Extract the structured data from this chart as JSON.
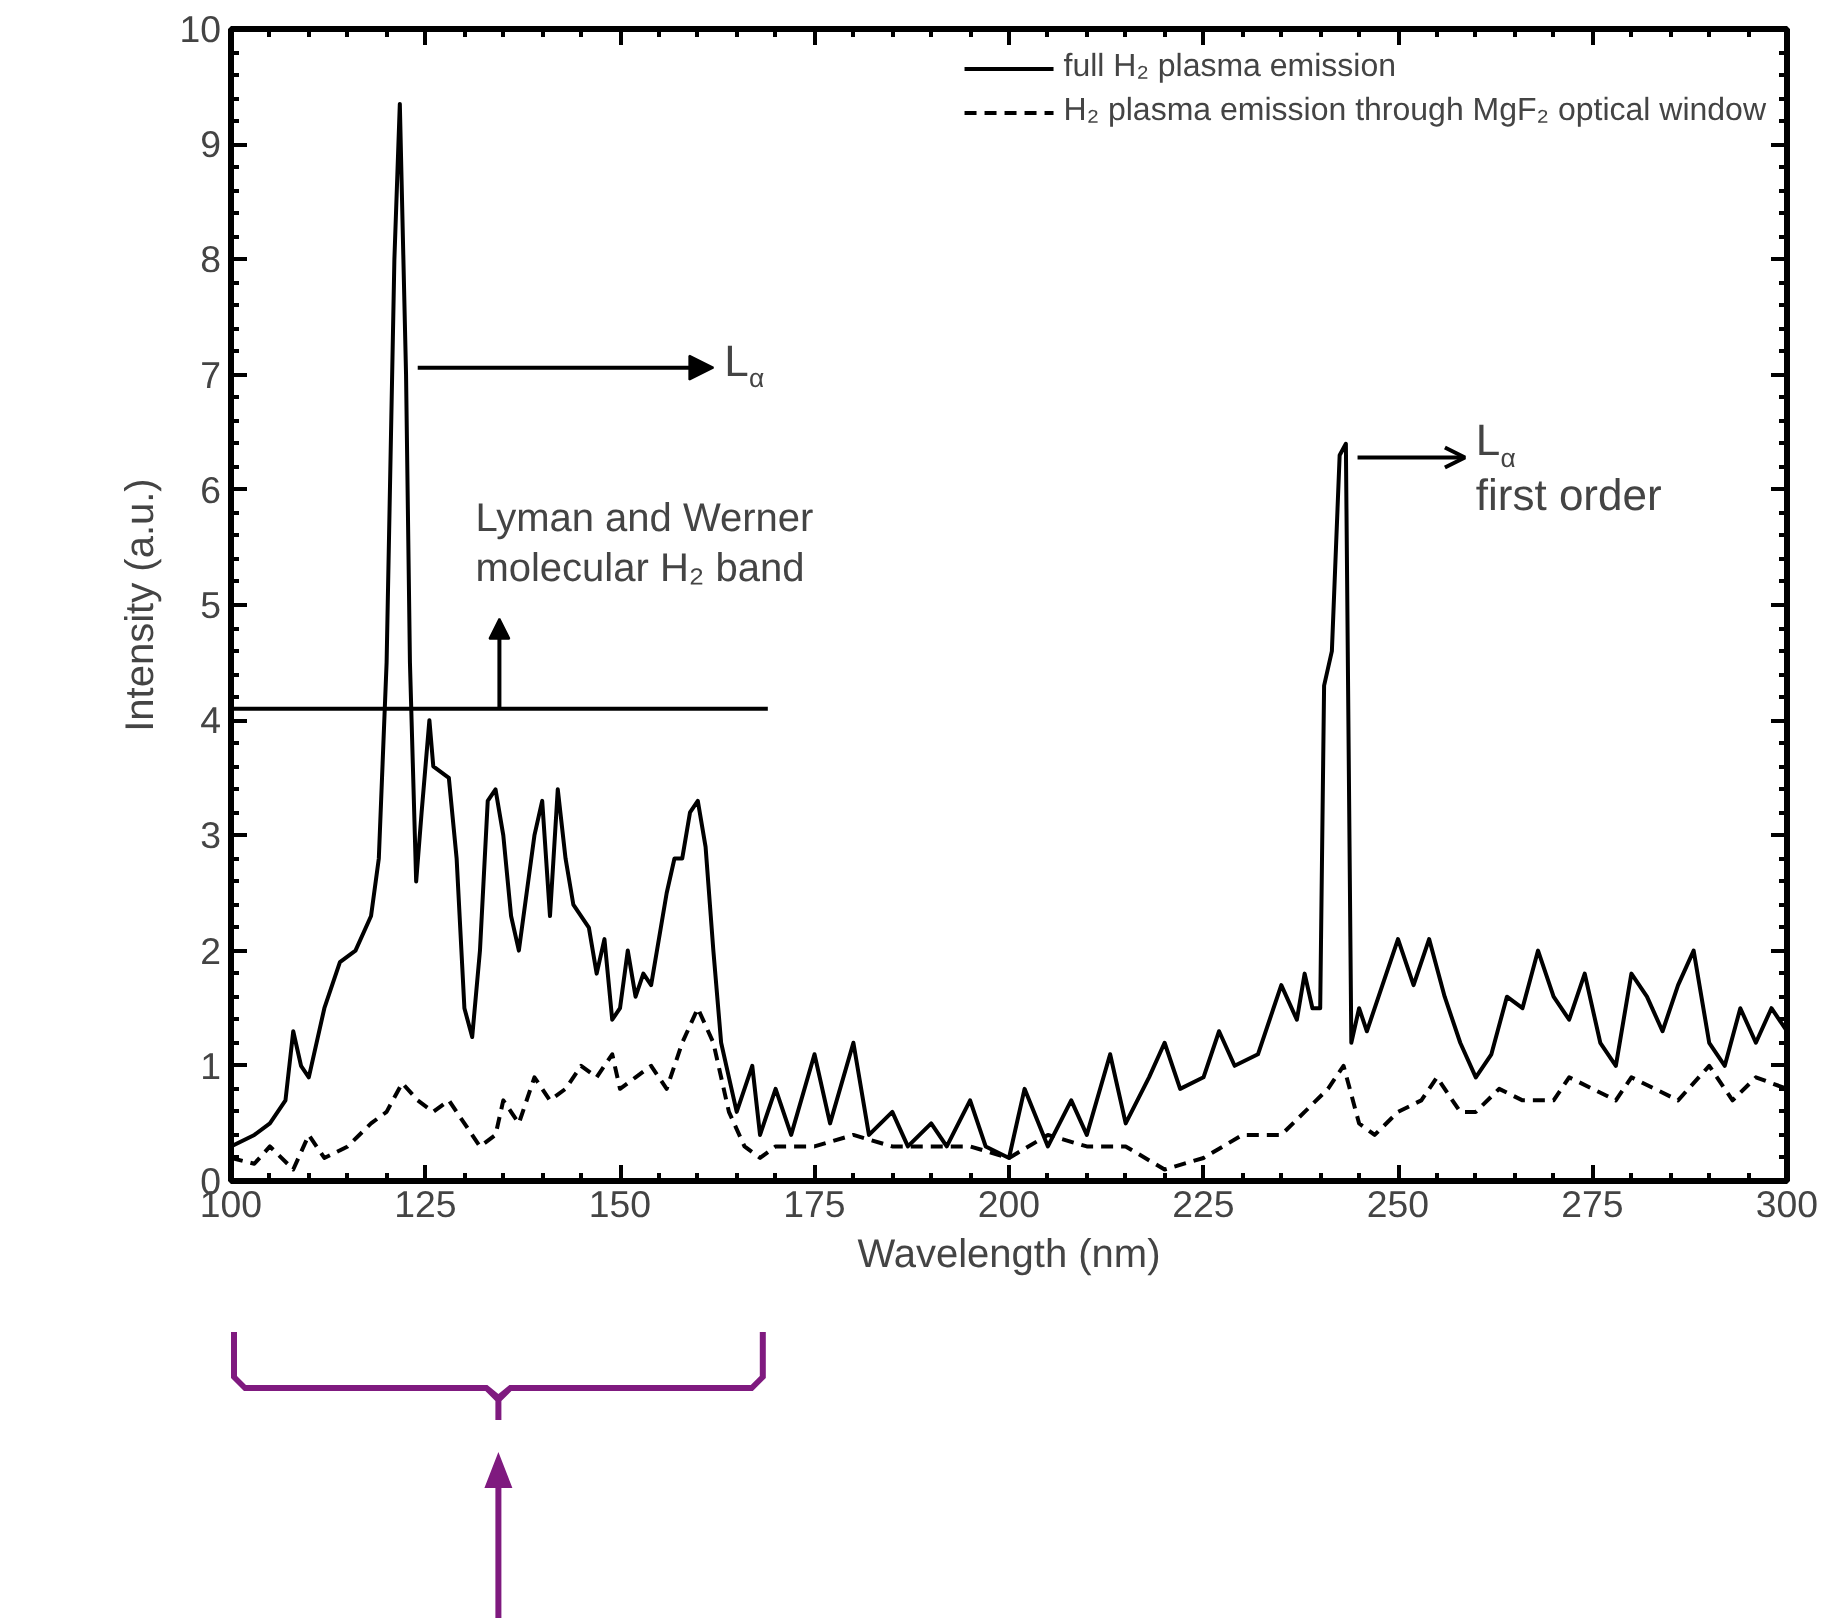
{
  "chart_data": {
    "type": "line",
    "xlabel": "Wavelength (nm)",
    "ylabel": "Intensity (a.u.)",
    "xlim": [
      100,
      300
    ],
    "xticks": [
      100,
      125,
      150,
      175,
      200,
      225,
      250,
      275,
      300
    ],
    "ylim": [
      0,
      10
    ],
    "yticks": [
      0,
      1,
      2,
      3,
      4,
      5,
      6,
      7,
      8,
      9,
      10
    ],
    "grid": false,
    "legend": "top right",
    "marker": "none",
    "series": [
      {
        "name": "full H₂ plasma emission",
        "color": "#000000",
        "line_style": "solid",
        "x": [
          100,
          103,
          105,
          107,
          108,
          109,
          110,
          112,
          114,
          116,
          118,
          119,
          120,
          121,
          121.7,
          122.5,
          123,
          123.8,
          124.5,
          125.5,
          126,
          128,
          129,
          130,
          131,
          132,
          133,
          134,
          135,
          136,
          137,
          138,
          139,
          140,
          141,
          142,
          143,
          144,
          146,
          147,
          148,
          149,
          150,
          151,
          152,
          153,
          154,
          156,
          157,
          158,
          159,
          160,
          161,
          162,
          163,
          164,
          165,
          167,
          168,
          170,
          172,
          175,
          177,
          180,
          182,
          185,
          187,
          190,
          192,
          195,
          197,
          200,
          202,
          205,
          208,
          210,
          213,
          215,
          218,
          220,
          222,
          225,
          227,
          229,
          232,
          235,
          237,
          238,
          239,
          240,
          240.5,
          241.5,
          242.5,
          243.3,
          244,
          245,
          246,
          248,
          250,
          252,
          254,
          256,
          258,
          260,
          262,
          264,
          266,
          268,
          270,
          272,
          274,
          276,
          278,
          280,
          282,
          284,
          286,
          288,
          290,
          292,
          294,
          296,
          298,
          300
        ],
        "values": [
          0.3,
          0.4,
          0.5,
          0.7,
          1.3,
          1.0,
          0.9,
          1.5,
          1.9,
          2.0,
          2.3,
          2.8,
          4.5,
          8.0,
          9.35,
          7.0,
          4.5,
          2.6,
          3.2,
          4.0,
          3.6,
          3.5,
          2.8,
          1.5,
          1.25,
          2.0,
          3.3,
          3.4,
          3.0,
          2.3,
          2.0,
          2.5,
          3.0,
          3.3,
          2.3,
          3.4,
          2.8,
          2.4,
          2.2,
          1.8,
          2.1,
          1.4,
          1.5,
          2.0,
          1.6,
          1.8,
          1.7,
          2.5,
          2.8,
          2.8,
          3.2,
          3.3,
          2.9,
          2.0,
          1.2,
          0.9,
          0.6,
          1.0,
          0.4,
          0.8,
          0.4,
          1.1,
          0.5,
          1.2,
          0.4,
          0.6,
          0.3,
          0.5,
          0.3,
          0.7,
          0.3,
          0.2,
          0.8,
          0.3,
          0.7,
          0.4,
          1.1,
          0.5,
          0.9,
          1.2,
          0.8,
          0.9,
          1.3,
          1.0,
          1.1,
          1.7,
          1.4,
          1.8,
          1.5,
          1.5,
          4.3,
          4.6,
          6.3,
          6.4,
          1.2,
          1.5,
          1.3,
          1.7,
          2.1,
          1.7,
          2.1,
          1.6,
          1.2,
          0.9,
          1.1,
          1.6,
          1.5,
          2.0,
          1.6,
          1.4,
          1.8,
          1.2,
          1.0,
          1.8,
          1.6,
          1.3,
          1.7,
          2.0,
          1.2,
          1.0,
          1.5,
          1.2,
          1.5,
          1.3
        ]
      },
      {
        "color": "#000000",
        "line_style": "solid",
        "x": [
          100,
          169
        ],
        "values": [
          4.1,
          4.1
        ]
      },
      {
        "name": "H₂ plasma emission through MgF₂ optical window",
        "color": "#000000",
        "line_style": "dashed",
        "x": [
          100,
          103,
          105,
          108,
          110,
          112,
          115,
          118,
          120,
          122,
          124,
          126,
          128,
          130,
          132,
          134,
          135,
          137,
          139,
          141,
          143,
          145,
          147,
          149,
          150,
          152,
          154,
          156,
          158,
          160,
          162,
          164,
          166,
          168,
          170,
          175,
          180,
          185,
          190,
          195,
          200,
          205,
          210,
          215,
          220,
          225,
          230,
          235,
          238,
          241,
          243,
          245,
          247,
          250,
          253,
          255,
          258,
          260,
          263,
          266,
          270,
          272,
          275,
          278,
          280,
          283,
          286,
          290,
          293,
          296,
          300
        ],
        "values": [
          0.2,
          0.15,
          0.3,
          0.1,
          0.4,
          0.2,
          0.3,
          0.5,
          0.6,
          0.85,
          0.7,
          0.6,
          0.7,
          0.5,
          0.3,
          0.4,
          0.7,
          0.5,
          0.9,
          0.7,
          0.8,
          1.0,
          0.9,
          1.1,
          0.8,
          0.9,
          1.0,
          0.8,
          1.2,
          1.5,
          1.2,
          0.6,
          0.3,
          0.2,
          0.3,
          0.3,
          0.4,
          0.3,
          0.3,
          0.3,
          0.2,
          0.4,
          0.3,
          0.3,
          0.1,
          0.2,
          0.4,
          0.4,
          0.6,
          0.8,
          1.0,
          0.5,
          0.4,
          0.6,
          0.7,
          0.9,
          0.6,
          0.6,
          0.8,
          0.7,
          0.7,
          0.9,
          0.8,
          0.7,
          0.9,
          0.8,
          0.7,
          1.0,
          0.7,
          0.9,
          0.8
        ]
      }
    ],
    "annotations": [
      "L$_{α}$",
      "L$_{α}$\nfirst order",
      {
        "text": "Lyman and Werner\nmolecular H₂ band",
        "x": 134.5,
        "y": 4.1
      }
    ]
  }
}
